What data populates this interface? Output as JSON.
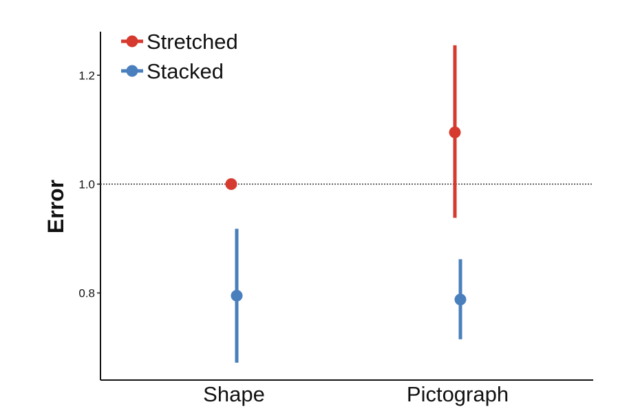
{
  "chart_data": {
    "type": "scatter",
    "subtype": "point-with-error-bars",
    "categories": [
      "Shape",
      "Pictograph"
    ],
    "ylabel": "Error",
    "xlabel": "",
    "ylim": [
      0.64,
      1.28
    ],
    "yticks": [
      0.8,
      1.0,
      1.2
    ],
    "ytick_labels": [
      "0.8",
      "1.0",
      "1.2"
    ],
    "reference_line": {
      "y": 1.0,
      "style": "dotted",
      "color": "#333333"
    },
    "grid": false,
    "legend": {
      "position": "top-left"
    },
    "series": [
      {
        "name": "Stretched",
        "color": "#d63a2f",
        "values": [
          1.0,
          1.095
        ],
        "lower": [
          1.0,
          0.938
        ],
        "upper": [
          1.0,
          1.255
        ]
      },
      {
        "name": "Stacked",
        "color": "#4a7fbd",
        "values": [
          0.795,
          0.788
        ],
        "lower": [
          0.672,
          0.715
        ],
        "upper": [
          0.918,
          0.862
        ]
      }
    ]
  }
}
